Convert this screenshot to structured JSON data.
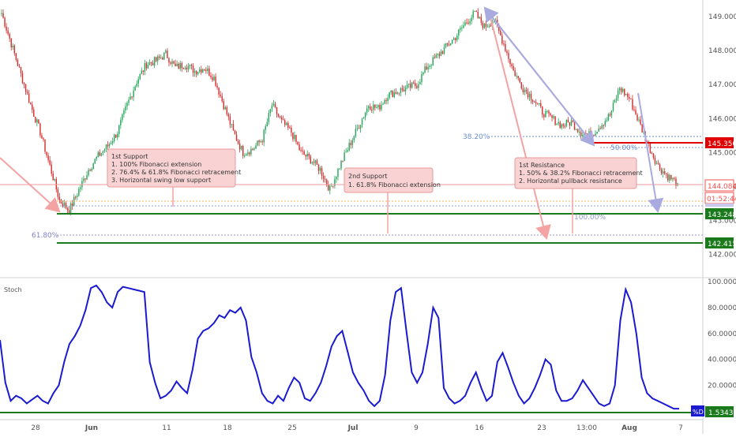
{
  "chart_data": [
    {
      "type": "candlestick",
      "title": "",
      "ylim": [
        141.4,
        149.6
      ],
      "yticks": [
        "149.000",
        "148.000",
        "147.000",
        "146.000",
        "145.000",
        "144.000",
        "143.000",
        "142.000"
      ],
      "xticks": [
        "28",
        "Jun",
        "11",
        "18",
        "25",
        "Jul",
        "9",
        "16",
        "23",
        "13:00",
        "Aug",
        "7"
      ],
      "price_levels": [
        {
          "name": "current",
          "value": "144.084",
          "color": "#ef5350"
        },
        {
          "name": "countdown",
          "value": "01:52:44",
          "color": "#ef5350"
        },
        {
          "name": "resistance",
          "value": "145.350",
          "color": "#e00000"
        },
        {
          "name": "support-1",
          "value": "143.248",
          "color": "#1b7a1b"
        },
        {
          "name": "support-2",
          "value": "142.415",
          "color": "#1b7a1b"
        }
      ],
      "fib_labels": [
        "38.20%",
        "50.00%",
        "100.00%",
        "61.80%"
      ],
      "annotations": [
        {
          "id": "support1",
          "lines": [
            "1st Support",
            "1. 100% Fibonacci extension",
            "2. 76.4% & 61.8% Fibonacci retracement",
            "3. Horizontal swing low support"
          ]
        },
        {
          "id": "support2",
          "lines": [
            "2nd Support",
            "1. 61.8% Fibonacci extension"
          ]
        },
        {
          "id": "resistance1",
          "lines": [
            "1st Resistance",
            "1. 50% & 38.2% Fibonacci retracement",
            "2. Horizontal pullback resistance"
          ]
        }
      ],
      "closes": [
        149.1,
        148.2,
        147.3,
        146.4,
        145.6,
        144.6,
        143.6,
        143.3,
        143.9,
        144.5,
        144.9,
        145.2,
        145.6,
        146.4,
        147.1,
        147.6,
        147.7,
        147.9,
        147.5,
        147.6,
        147.4,
        147.5,
        147.2,
        146.4,
        145.6,
        145.0,
        145.1,
        145.4,
        146.4,
        145.9,
        145.6,
        145.0,
        144.8,
        144.5,
        143.9,
        144.6,
        145.2,
        145.8,
        146.4,
        146.3,
        146.7,
        146.8,
        146.9,
        147.0,
        147.5,
        147.8,
        148.1,
        148.4,
        148.8,
        149.1,
        148.7,
        148.9,
        148.2,
        147.4,
        146.9,
        146.6,
        146.2,
        146.0,
        145.8,
        145.9,
        145.6,
        145.5,
        145.8,
        146.1,
        146.9,
        146.6,
        145.9,
        145.2,
        144.6,
        144.3,
        144.1
      ]
    },
    {
      "type": "line",
      "title": "Stoch",
      "series": [
        {
          "name": "%D"
        }
      ],
      "ylim": [
        0,
        100
      ],
      "yticks": [
        "100.0000",
        "80.0000",
        "60.0000",
        "40.0000",
        "20.0000"
      ],
      "last_value": "1.5343",
      "values": [
        55,
        22,
        8,
        12,
        10,
        6,
        9,
        12,
        8,
        6,
        14,
        20,
        38,
        52,
        58,
        66,
        78,
        95,
        97,
        92,
        84,
        80,
        92,
        96,
        95,
        94,
        93,
        92,
        38,
        22,
        10,
        12,
        16,
        23,
        18,
        14,
        32,
        56,
        62,
        64,
        68,
        74,
        72,
        78,
        76,
        80,
        70,
        42,
        30,
        14,
        8,
        6,
        12,
        8,
        18,
        26,
        22,
        10,
        8,
        14,
        22,
        35,
        50,
        58,
        62,
        46,
        30,
        22,
        16,
        8,
        4,
        8,
        28,
        70,
        92,
        95,
        62,
        30,
        22,
        30,
        52,
        80,
        72,
        18,
        10,
        6,
        8,
        12,
        22,
        30,
        18,
        8,
        12,
        38,
        45,
        34,
        22,
        12,
        6,
        10,
        18,
        28,
        40,
        36,
        16,
        8,
        8,
        10,
        16,
        24,
        18,
        12,
        6,
        4,
        6,
        20,
        70,
        94,
        84,
        60,
        26,
        14,
        10,
        8,
        6,
        4,
        2,
        2
      ]
    }
  ]
}
